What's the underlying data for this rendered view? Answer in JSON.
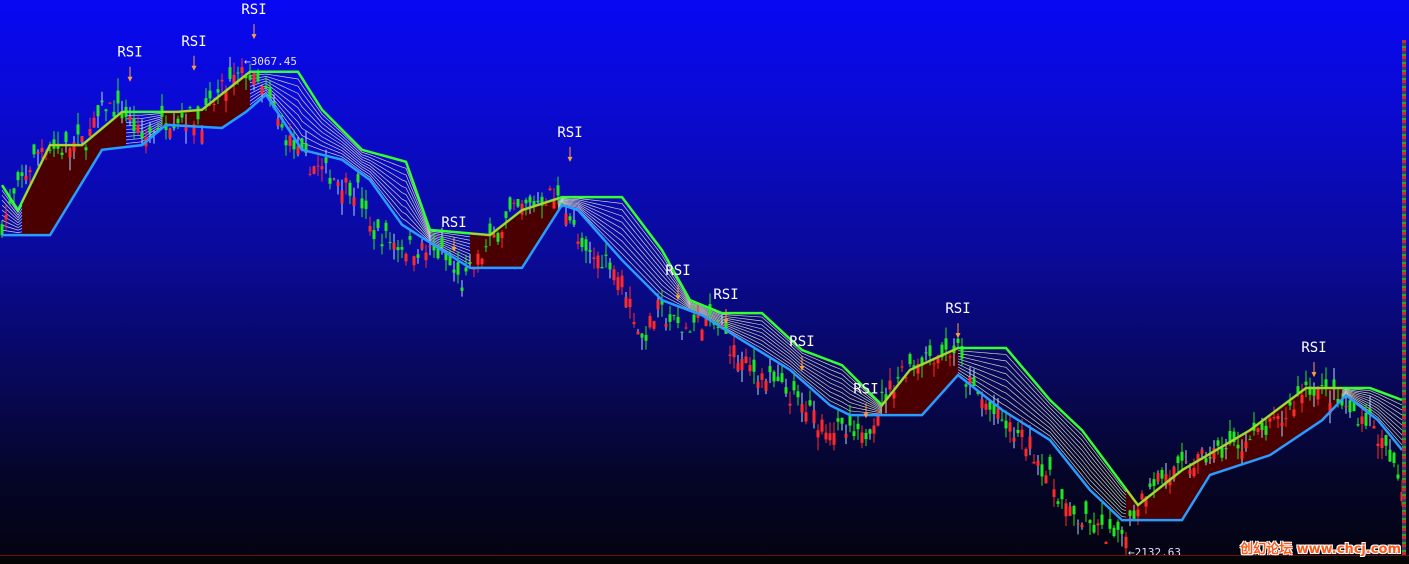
{
  "chart_data": {
    "type": "candlestick",
    "title": "",
    "xlabel": "",
    "ylabel": "",
    "ylim": [
      2129,
      3196
    ],
    "bars": 351,
    "grid": false,
    "close_path": [
      [
        0,
        2764
      ],
      [
        5,
        2850
      ],
      [
        10,
        2917
      ],
      [
        15,
        2908
      ],
      [
        21,
        2927
      ],
      [
        26,
        2994
      ],
      [
        31,
        2975
      ],
      [
        35,
        2927
      ],
      [
        41,
        2965
      ],
      [
        46,
        2975
      ],
      [
        50,
        2965
      ],
      [
        55,
        3023
      ],
      [
        61,
        3058
      ],
      [
        66,
        3014
      ],
      [
        70,
        2946
      ],
      [
        75,
        2889
      ],
      [
        82,
        2860
      ],
      [
        89,
        2831
      ],
      [
        92,
        2754
      ],
      [
        99,
        2725
      ],
      [
        105,
        2715
      ],
      [
        110,
        2706
      ],
      [
        115,
        2648
      ],
      [
        120,
        2706
      ],
      [
        127,
        2783
      ],
      [
        137,
        2821
      ],
      [
        141,
        2802
      ],
      [
        145,
        2706
      ],
      [
        152,
        2696
      ],
      [
        156,
        2639
      ],
      [
        160,
        2542
      ],
      [
        164,
        2600
      ],
      [
        170,
        2562
      ],
      [
        175,
        2581
      ],
      [
        180,
        2562
      ],
      [
        184,
        2504
      ],
      [
        190,
        2475
      ],
      [
        197,
        2436
      ],
      [
        204,
        2388
      ],
      [
        209,
        2369
      ],
      [
        215,
        2350
      ],
      [
        220,
        2427
      ],
      [
        225,
        2485
      ],
      [
        231,
        2513
      ],
      [
        239,
        2523
      ],
      [
        241,
        2465
      ],
      [
        247,
        2408
      ],
      [
        252,
        2369
      ],
      [
        257,
        2340
      ],
      [
        262,
        2273
      ],
      [
        267,
        2206
      ],
      [
        274,
        2177
      ],
      [
        279,
        2158
      ],
      [
        282,
        2196
      ],
      [
        287,
        2273
      ],
      [
        295,
        2292
      ],
      [
        302,
        2321
      ],
      [
        312,
        2350
      ],
      [
        320,
        2388
      ],
      [
        326,
        2456
      ],
      [
        332,
        2436
      ],
      [
        336,
        2408
      ],
      [
        342,
        2388
      ],
      [
        347,
        2311
      ],
      [
        350,
        2254
      ]
    ],
    "upper_band": [
      [
        0,
        2840
      ],
      [
        4,
        2792
      ],
      [
        12,
        2917
      ],
      [
        20,
        2917
      ],
      [
        30,
        2981
      ],
      [
        44,
        2981
      ],
      [
        50,
        2985
      ],
      [
        62,
        3058
      ],
      [
        74,
        3058
      ],
      [
        80,
        2985
      ],
      [
        90,
        2908
      ],
      [
        101,
        2885
      ],
      [
        107,
        2754
      ],
      [
        122,
        2744
      ],
      [
        130,
        2792
      ],
      [
        140,
        2817
      ],
      [
        155,
        2817
      ],
      [
        165,
        2715
      ],
      [
        172,
        2619
      ],
      [
        180,
        2594
      ],
      [
        190,
        2594
      ],
      [
        200,
        2523
      ],
      [
        210,
        2494
      ],
      [
        220,
        2417
      ],
      [
        227,
        2485
      ],
      [
        239,
        2527
      ],
      [
        251,
        2527
      ],
      [
        262,
        2427
      ],
      [
        270,
        2369
      ],
      [
        284,
        2225
      ],
      [
        295,
        2292
      ],
      [
        312,
        2369
      ],
      [
        326,
        2450
      ],
      [
        342,
        2450
      ],
      [
        350,
        2427
      ]
    ],
    "lower_band": [
      [
        0,
        2744
      ],
      [
        12,
        2744
      ],
      [
        25,
        2908
      ],
      [
        35,
        2917
      ],
      [
        41,
        2956
      ],
      [
        55,
        2950
      ],
      [
        61,
        2981
      ],
      [
        66,
        3014
      ],
      [
        75,
        2908
      ],
      [
        85,
        2889
      ],
      [
        92,
        2850
      ],
      [
        100,
        2764
      ],
      [
        110,
        2715
      ],
      [
        117,
        2681
      ],
      [
        130,
        2681
      ],
      [
        140,
        2802
      ],
      [
        144,
        2792
      ],
      [
        155,
        2696
      ],
      [
        165,
        2619
      ],
      [
        175,
        2590
      ],
      [
        185,
        2542
      ],
      [
        197,
        2485
      ],
      [
        207,
        2417
      ],
      [
        212,
        2398
      ],
      [
        230,
        2398
      ],
      [
        239,
        2475
      ],
      [
        250,
        2408
      ],
      [
        262,
        2350
      ],
      [
        272,
        2254
      ],
      [
        280,
        2196
      ],
      [
        295,
        2196
      ],
      [
        302,
        2283
      ],
      [
        317,
        2321
      ],
      [
        330,
        2388
      ],
      [
        336,
        2436
      ],
      [
        344,
        2388
      ],
      [
        350,
        2331
      ]
    ],
    "uptrend_ranges": [
      [
        5,
        31
      ],
      [
        40,
        62
      ],
      [
        117,
        139
      ],
      [
        220,
        239
      ],
      [
        281,
        335
      ]
    ],
    "downtrend_ranges": [
      [
        0,
        5
      ],
      [
        31,
        40
      ],
      [
        62,
        117
      ],
      [
        139,
        220
      ],
      [
        239,
        281
      ],
      [
        335,
        350
      ]
    ],
    "annotations": [
      {
        "text": "RSI",
        "bar": 32,
        "price": 3110
      },
      {
        "text": "RSI",
        "bar": 48,
        "price": 3131
      },
      {
        "text": "RSI",
        "bar": 63,
        "price": 3192
      },
      {
        "text": "RSI",
        "bar": 142,
        "price": 2956
      },
      {
        "text": "RSI",
        "bar": 113,
        "price": 2783
      },
      {
        "text": "RSI",
        "bar": 169,
        "price": 2690
      },
      {
        "text": "RSI",
        "bar": 181,
        "price": 2644
      },
      {
        "text": "RSI",
        "bar": 200,
        "price": 2554
      },
      {
        "text": "RSI",
        "bar": 216,
        "price": 2463
      },
      {
        "text": "RSI",
        "bar": 239,
        "price": 2617
      },
      {
        "text": "RSI",
        "bar": 328,
        "price": 2542
      }
    ],
    "high_marker": {
      "label": "←3067.45",
      "bar": 61,
      "price": 3067.45
    },
    "low_marker": {
      "label": "←2132.63",
      "bar": 282,
      "price": 2132.63
    },
    "colors": {
      "up": "#ff2a2a",
      "down": "#22e822",
      "upper_line": "#33ff33",
      "lower_line": "#2a9cff",
      "up_fill": "#4a0000",
      "hatch": "#f4f4c8",
      "trend_line": "#ffb030",
      "annotation": "#ffffff",
      "arrow": "#ffa040"
    }
  },
  "watermark": "创幻论坛 www.chcj.com"
}
